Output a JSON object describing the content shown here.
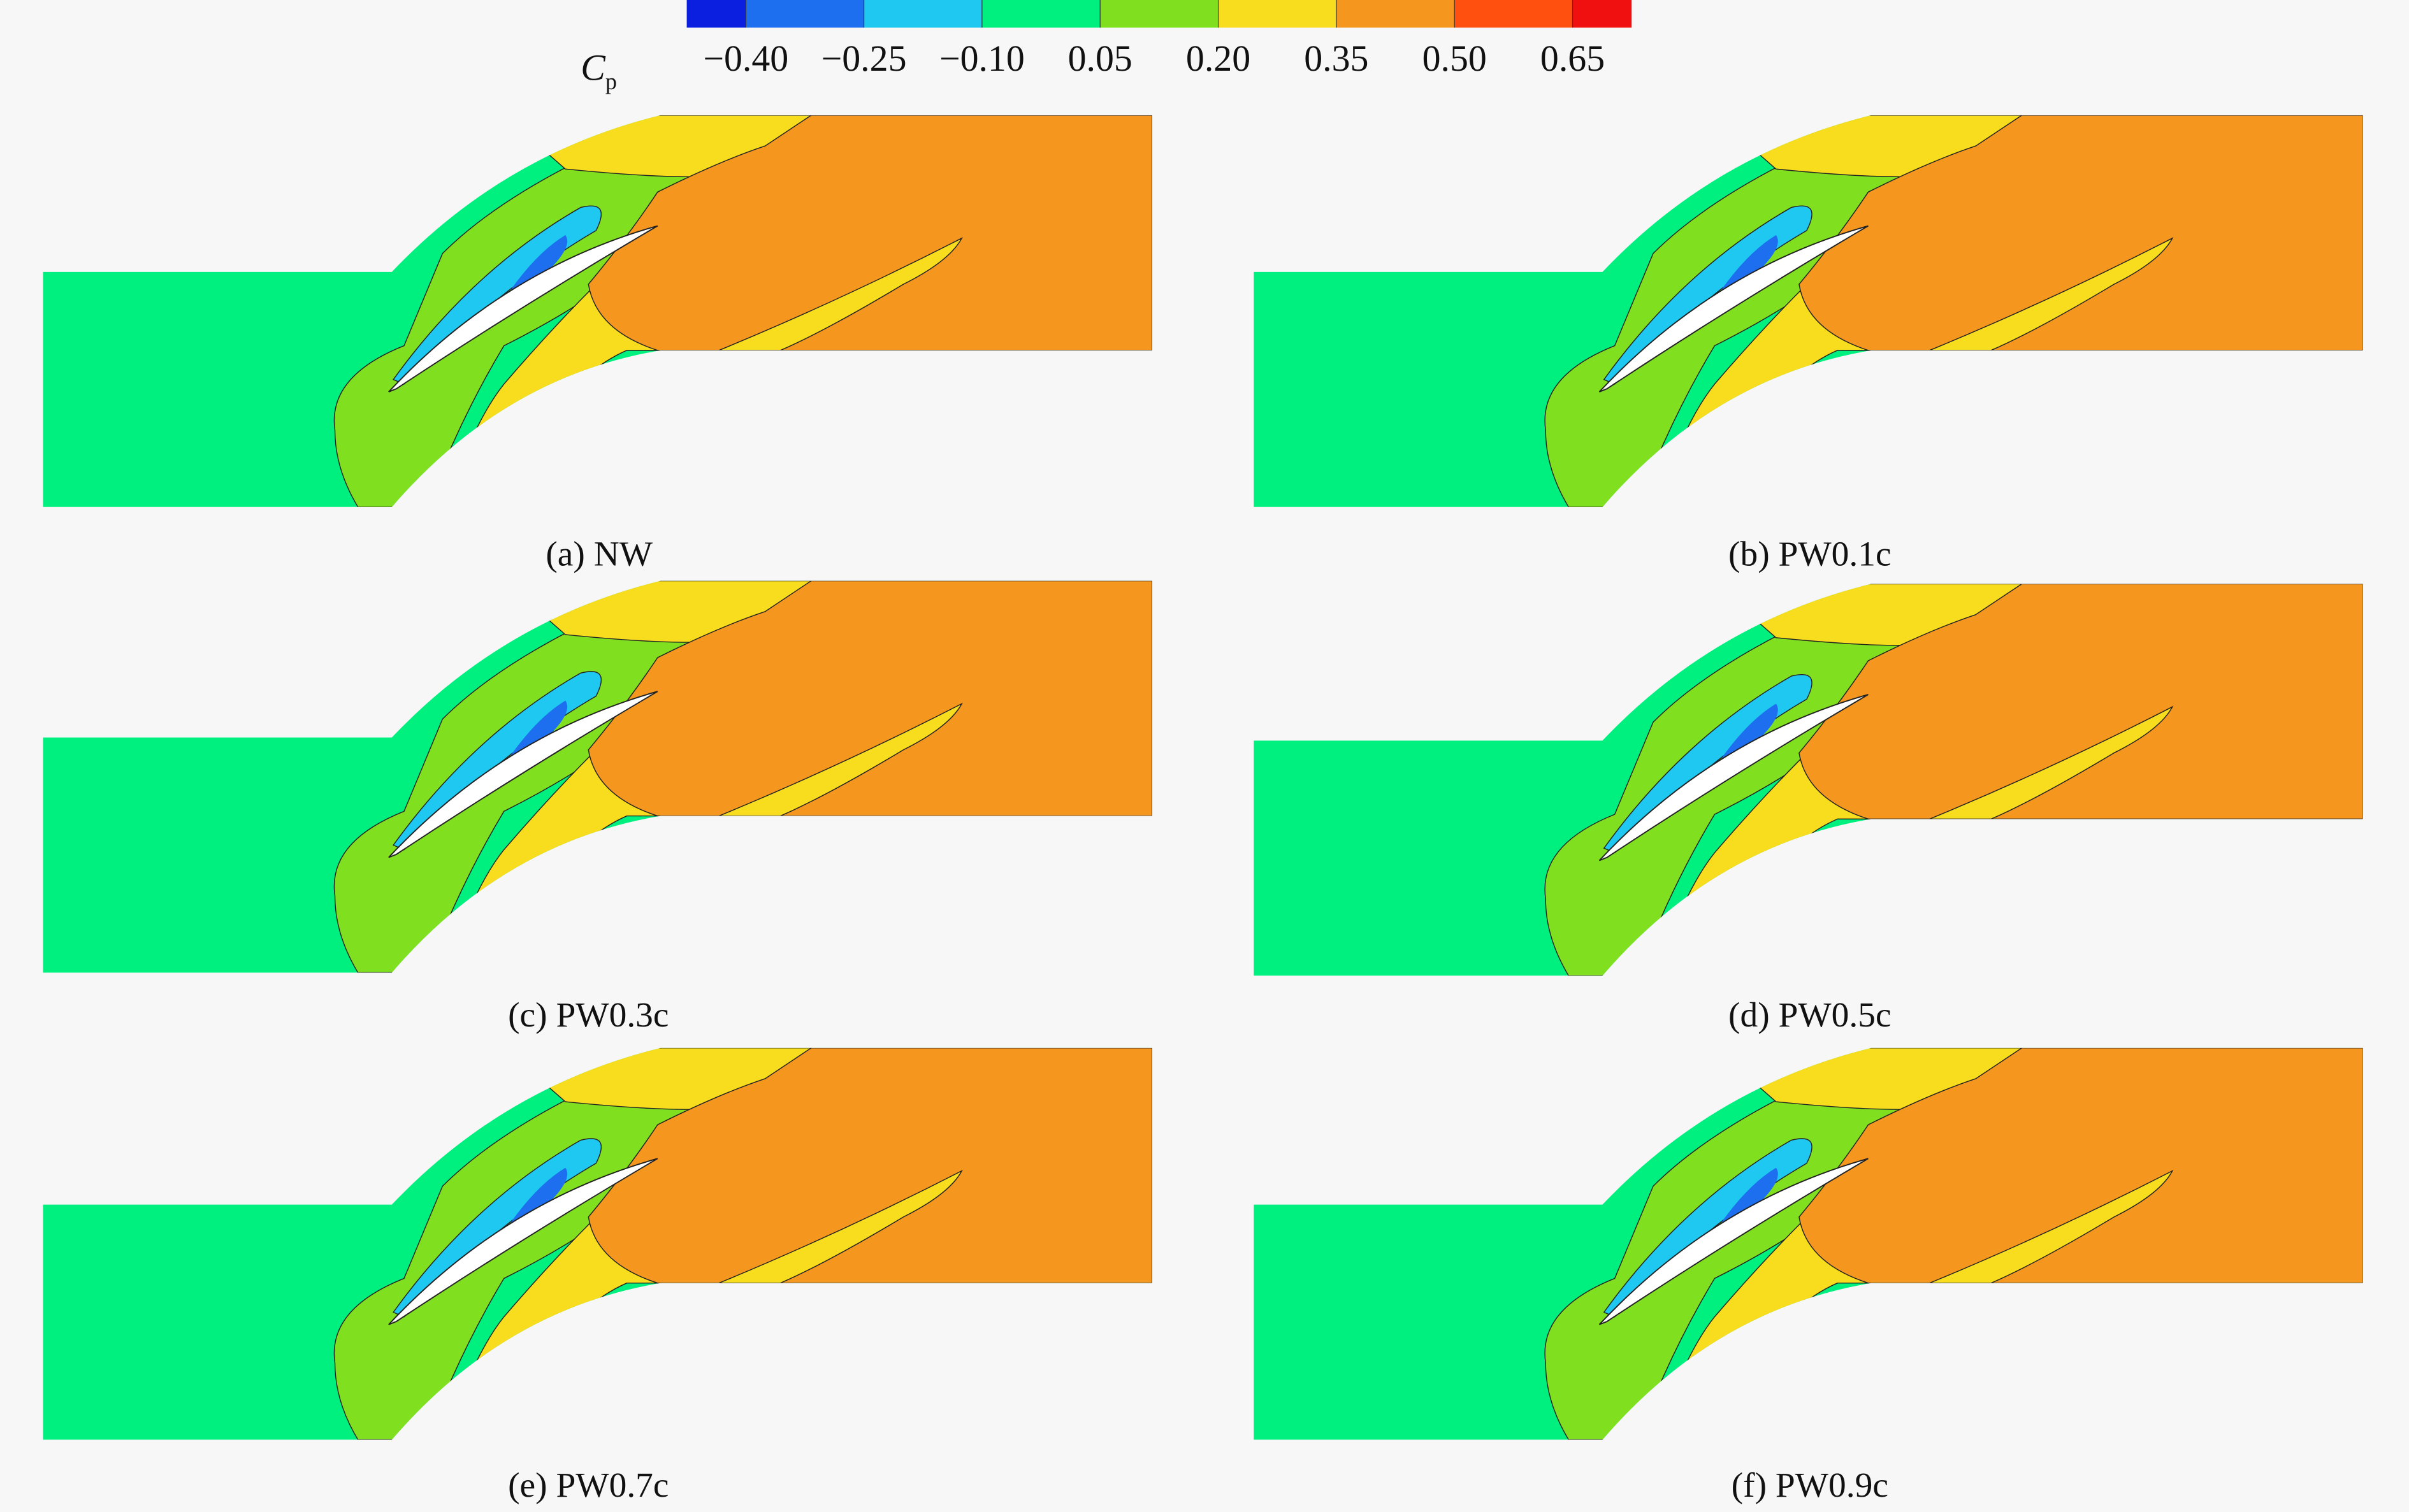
{
  "colorbar": {
    "label": "C",
    "label_subscript": "p",
    "range": [
      -0.475,
      0.725
    ],
    "colors": [
      "#0a1fe0",
      "#1e6ef0",
      "#1ec8f0",
      "#00f07f",
      "#80e020",
      "#f8dc1e",
      "#f5961e",
      "#ff5010",
      "#f01010"
    ],
    "ticks": [
      {
        "value": -0.4,
        "label": "−0.40"
      },
      {
        "value": -0.25,
        "label": "−0.25"
      },
      {
        "value": -0.1,
        "label": "−0.10"
      },
      {
        "value": 0.05,
        "label": "0.05"
      },
      {
        "value": 0.2,
        "label": "0.20"
      },
      {
        "value": 0.35,
        "label": "0.35"
      },
      {
        "value": 0.5,
        "label": "0.50"
      },
      {
        "value": 0.65,
        "label": "0.65"
      }
    ]
  },
  "panels": [
    {
      "caption": "(a) NW"
    },
    {
      "caption": "(b) PW0.1c"
    },
    {
      "caption": "(c) PW0.3c"
    },
    {
      "caption": "(d) PW0.5c"
    },
    {
      "caption": "(e) PW0.7c"
    },
    {
      "caption": "(f) PW0.9c"
    }
  ]
}
